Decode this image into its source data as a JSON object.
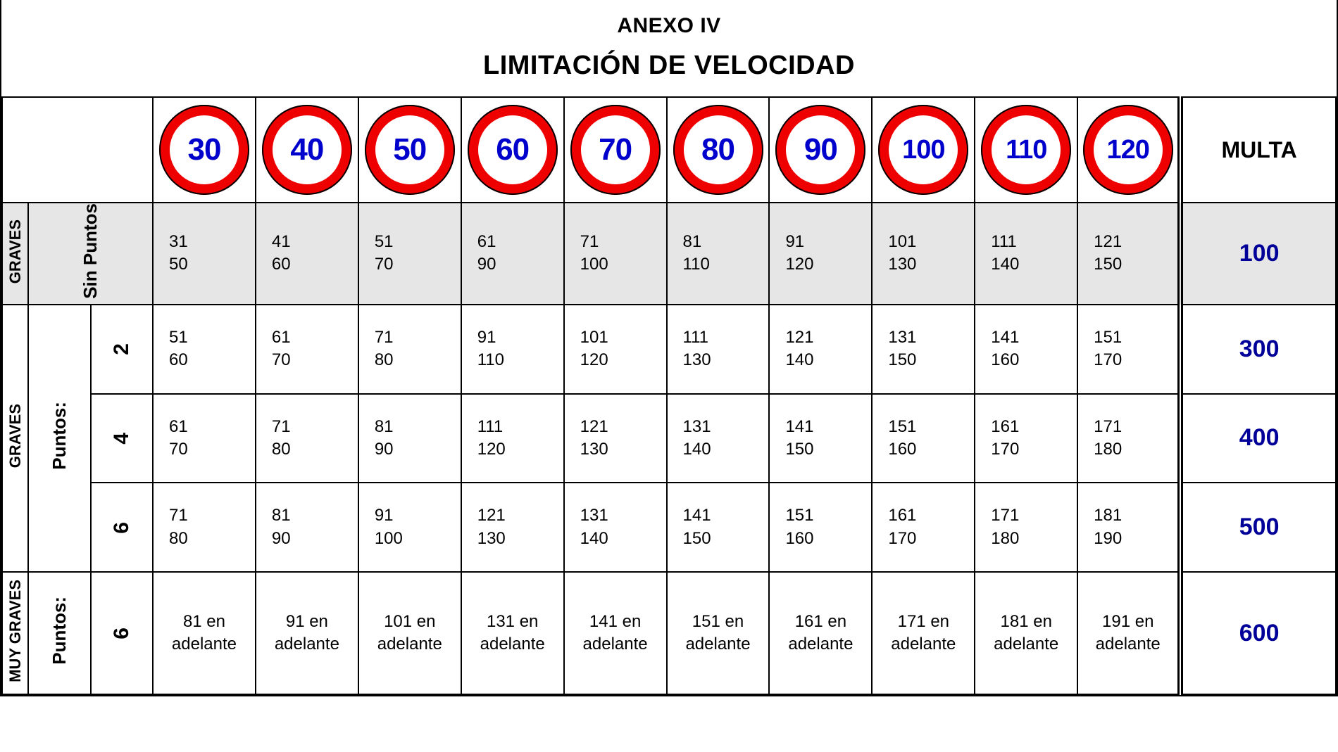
{
  "title": "ANEXO IV",
  "subtitle": "LIMITACIÓN DE VELOCIDAD",
  "multa_header": "MULTA",
  "speed_limits": [
    "30",
    "40",
    "50",
    "60",
    "70",
    "80",
    "90",
    "100",
    "110",
    "120"
  ],
  "sign_colors": {
    "ring": "#ee0000",
    "number": "#0000cc",
    "inner": "#ffffff"
  },
  "multa_color": "#000099",
  "shade_bg": "#e6e6e6",
  "categories": [
    {
      "label": "GRAVES",
      "points_label": "Sin Puntos",
      "rows": [
        {
          "number": "",
          "multa": "100",
          "shade": true,
          "ranges": [
            "31\n50",
            "41\n60",
            "51\n70",
            "61\n90",
            "71\n100",
            "81\n110",
            "91\n120",
            "101\n130",
            "111\n140",
            "121\n150"
          ]
        }
      ]
    },
    {
      "label": "GRAVES",
      "points_label": "Puntos:",
      "rows": [
        {
          "number": "2",
          "multa": "300",
          "shade": false,
          "ranges": [
            "51\n60",
            "61\n70",
            "71\n80",
            "91\n110",
            "101\n120",
            "111\n130",
            "121\n140",
            "131\n150",
            "141\n160",
            "151\n170"
          ]
        },
        {
          "number": "4",
          "multa": "400",
          "shade": false,
          "ranges": [
            "61\n70",
            "71\n80",
            "81\n90",
            "111\n120",
            "121\n130",
            "131\n140",
            "141\n150",
            "151\n160",
            "161\n170",
            "171\n180"
          ]
        },
        {
          "number": "6",
          "multa": "500",
          "shade": false,
          "ranges": [
            "71\n80",
            "81\n90",
            "91\n100",
            "121\n130",
            "131\n140",
            "141\n150",
            "151\n160",
            "161\n170",
            "171\n180",
            "181\n190"
          ]
        }
      ]
    },
    {
      "label": "MUY GRAVES",
      "points_label": "Puntos:",
      "rows": [
        {
          "number": "6",
          "multa": "600",
          "shade": false,
          "ranges": [
            "81 en adelante",
            "91 en adelante",
            "101 en adelante",
            "131 en adelante",
            "141 en adelante",
            "151 en adelante",
            "161 en adelante",
            "171 en adelante",
            "181 en adelante",
            "191 en adelante"
          ]
        }
      ]
    }
  ]
}
